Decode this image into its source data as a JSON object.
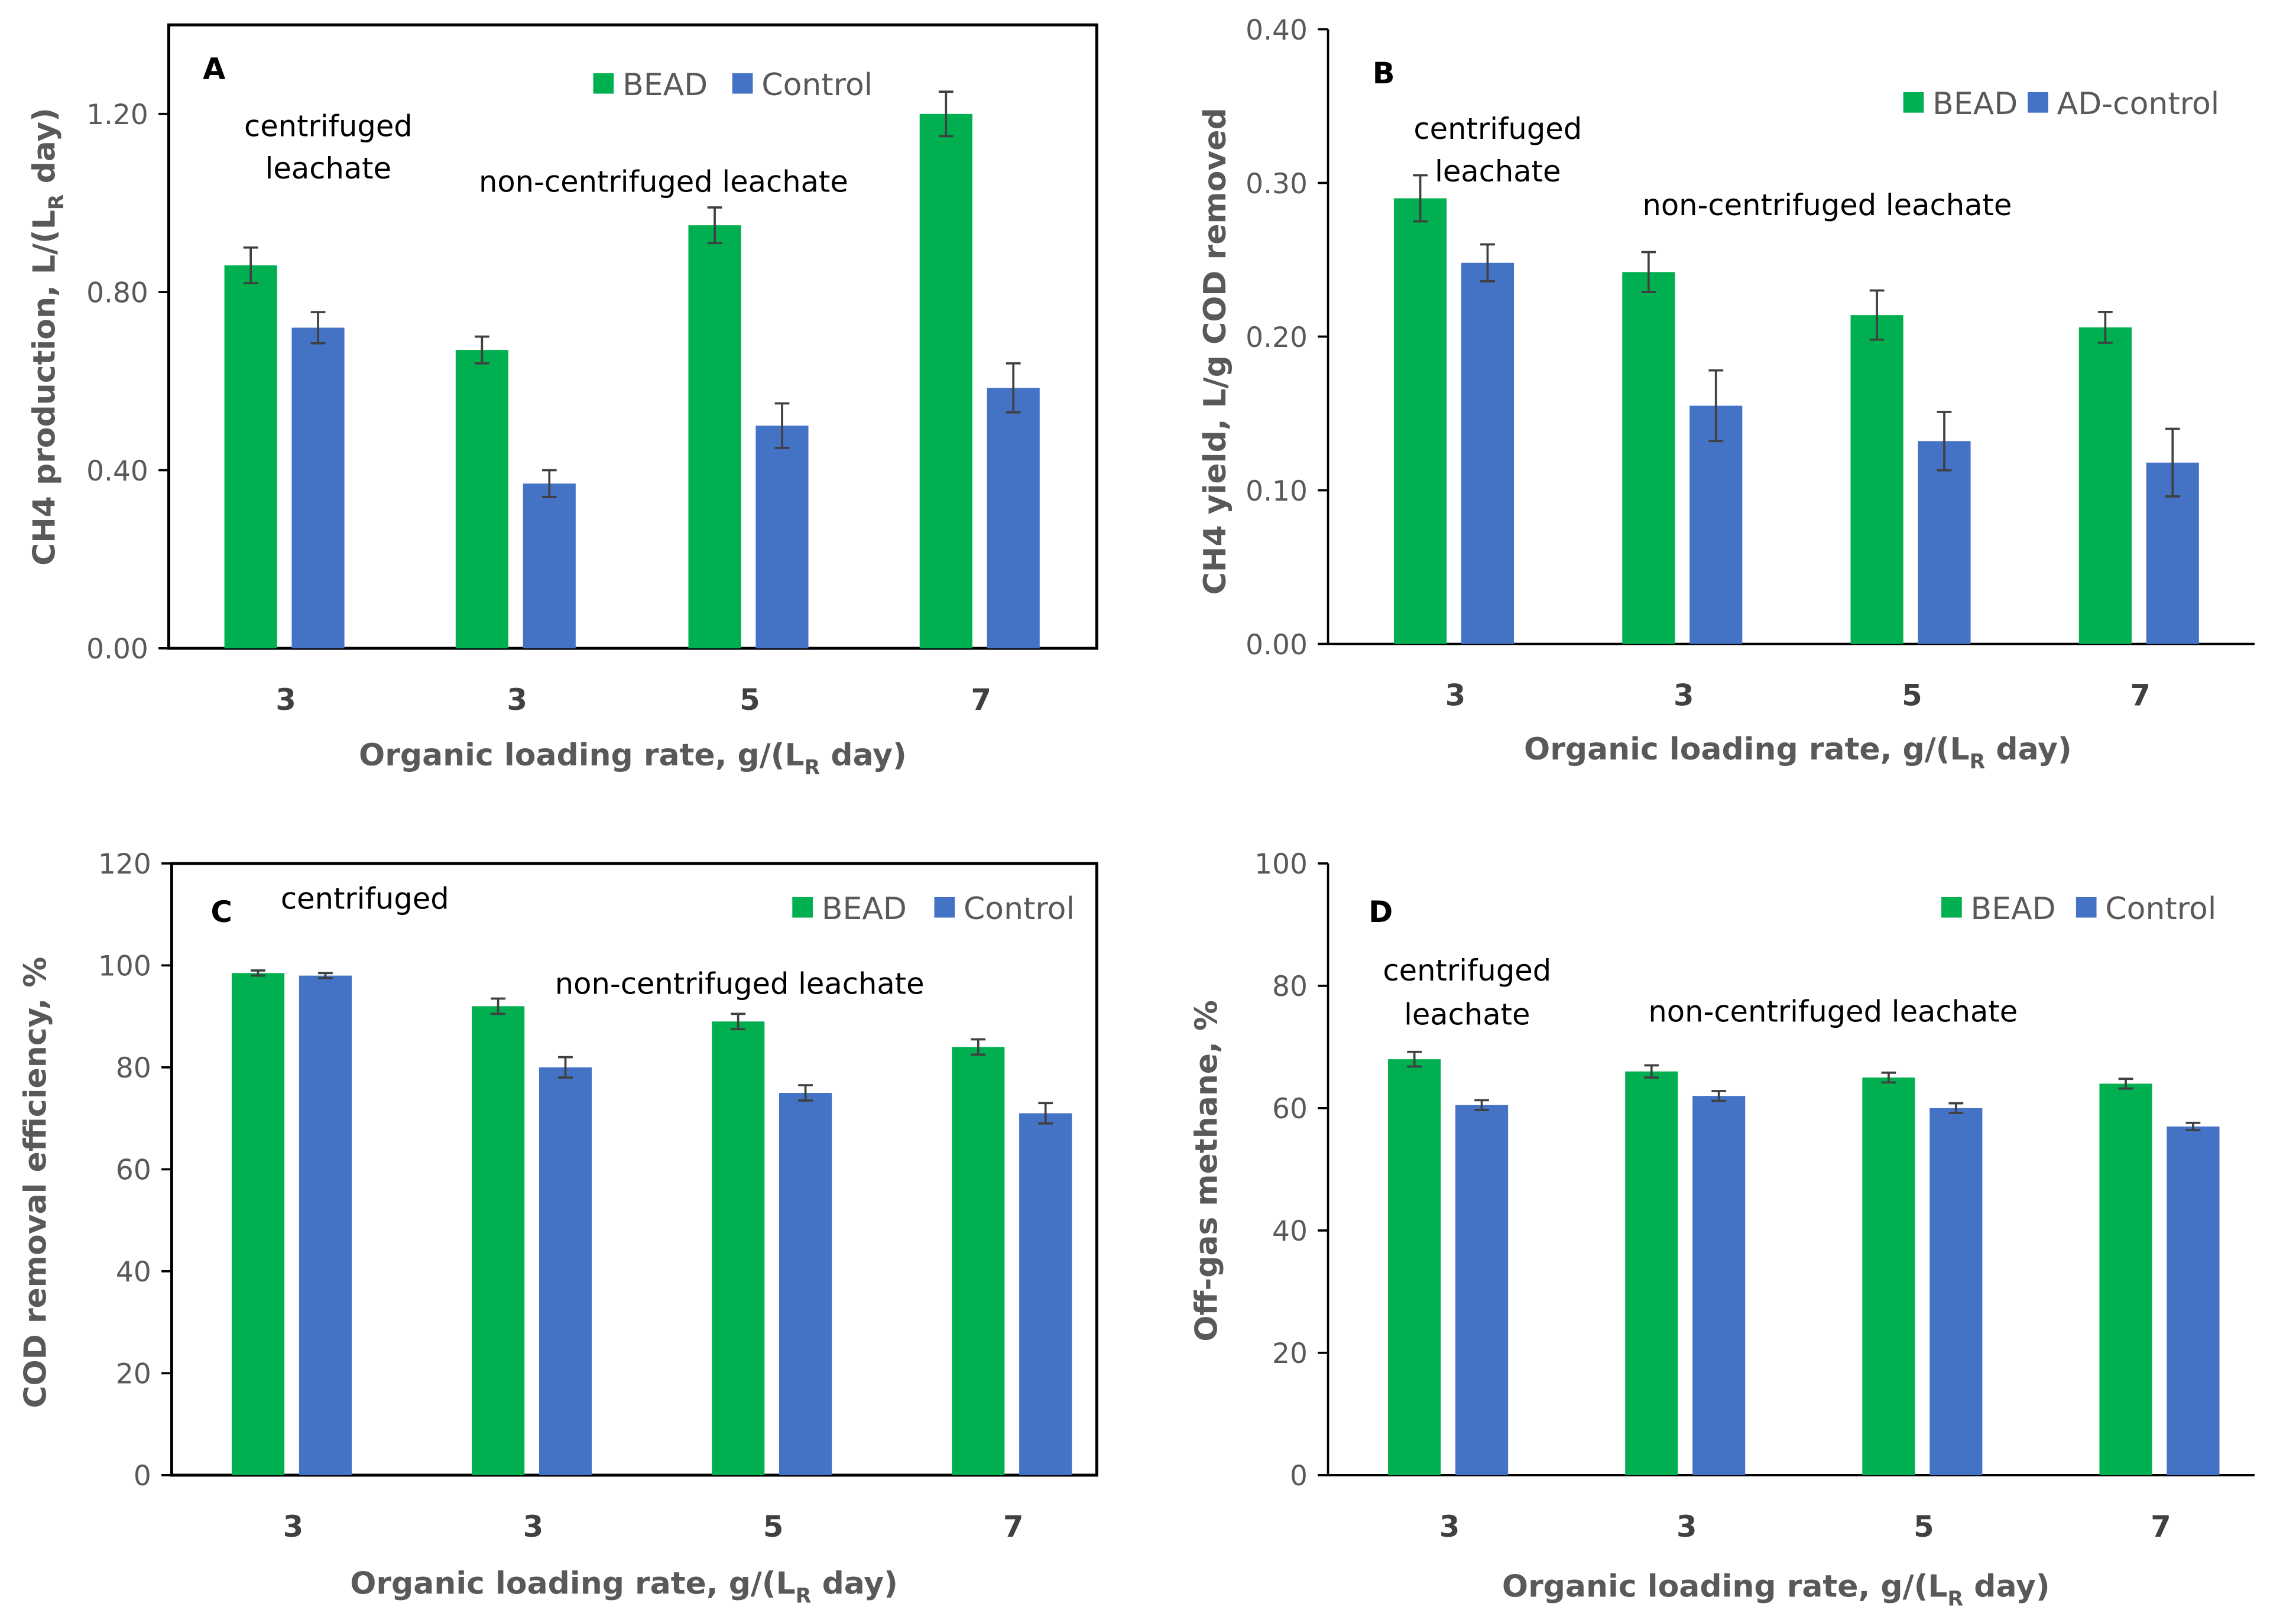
{
  "chart_data": [
    {
      "panel": "A",
      "type": "bar",
      "categories": [
        "3",
        "3",
        "5",
        "7"
      ],
      "xlabel": [
        "Organic loading rate, g/(L",
        "R",
        " day)"
      ],
      "ylabel": [
        "CH4 production, L/(L",
        "R",
        " day)"
      ],
      "ylim": [
        0,
        1.4
      ],
      "yticks": [
        "0.00",
        "0.40",
        "0.80",
        "1.20"
      ],
      "ytick_values": [
        0,
        0.4,
        0.8,
        1.2
      ],
      "series": [
        {
          "name": "BEAD",
          "color": "#00B050",
          "values": [
            0.86,
            0.67,
            0.95,
            1.2
          ],
          "errors": [
            0.04,
            0.03,
            0.04,
            0.05
          ]
        },
        {
          "name": "Control",
          "color": "#4472C4",
          "values": [
            0.72,
            0.37,
            0.5,
            0.585
          ],
          "errors": [
            0.035,
            0.03,
            0.05,
            0.055
          ]
        }
      ],
      "annotations": [
        "centrifuged",
        "leachate",
        "non-centrifuged leachate"
      ]
    },
    {
      "panel": "B",
      "type": "bar",
      "categories": [
        "3",
        "3",
        "5",
        "7"
      ],
      "xlabel": [
        "Organic loading rate, g/(L",
        "R",
        " day)"
      ],
      "ylabel": [
        "CH4 yield, L/g COD removed",
        "",
        ""
      ],
      "ylim": [
        0,
        0.4
      ],
      "yticks": [
        "0.00",
        "0.10",
        "0.20",
        "0.30",
        "0.40"
      ],
      "ytick_values": [
        0,
        0.1,
        0.2,
        0.3,
        0.4
      ],
      "series": [
        {
          "name": "BEAD",
          "color": "#00B050",
          "values": [
            0.29,
            0.242,
            0.214,
            0.206
          ],
          "errors": [
            0.015,
            0.013,
            0.016,
            0.01
          ]
        },
        {
          "name": "AD-control",
          "color": "#4472C4",
          "values": [
            0.248,
            0.155,
            0.132,
            0.118
          ],
          "errors": [
            0.012,
            0.023,
            0.019,
            0.022
          ]
        }
      ],
      "annotations": [
        "centrifuged",
        "leachate",
        "non-centrifuged leachate"
      ]
    },
    {
      "panel": "C",
      "type": "bar",
      "categories": [
        "3",
        "3",
        "5",
        "7"
      ],
      "xlabel": [
        "Organic loading rate, g/(L",
        "R",
        " day)"
      ],
      "ylabel": [
        "COD removal efficiency, %",
        "",
        ""
      ],
      "ylim": [
        0,
        120
      ],
      "yticks": [
        "0",
        "20",
        "40",
        "60",
        "80",
        "100",
        "120"
      ],
      "ytick_values": [
        0,
        20,
        40,
        60,
        80,
        100,
        120
      ],
      "series": [
        {
          "name": "BEAD",
          "color": "#00B050",
          "values": [
            98.5,
            92,
            89,
            84
          ],
          "errors": [
            0.5,
            1.5,
            1.5,
            1.5
          ]
        },
        {
          "name": "Control",
          "color": "#4472C4",
          "values": [
            98,
            80,
            75,
            71
          ],
          "errors": [
            0.5,
            2,
            1.5,
            2
          ]
        }
      ],
      "annotations": [
        "centrifuged",
        "",
        "non-centrifuged leachate"
      ]
    },
    {
      "panel": "D",
      "type": "bar",
      "categories": [
        "3",
        "3",
        "5",
        "7"
      ],
      "xlabel": [
        "Organic loading rate, g/(L",
        "R",
        " day)"
      ],
      "ylabel": [
        "Off-gas methane, %",
        "",
        ""
      ],
      "ylim": [
        0,
        100
      ],
      "yticks": [
        "0",
        "20",
        "40",
        "60",
        "80",
        "100"
      ],
      "ytick_values": [
        0,
        20,
        40,
        60,
        80,
        100
      ],
      "series": [
        {
          "name": "BEAD",
          "color": "#00B050",
          "values": [
            68,
            66,
            65,
            64
          ],
          "errors": [
            1.2,
            1,
            0.8,
            0.8
          ]
        },
        {
          "name": "Control",
          "color": "#4472C4",
          "values": [
            60.5,
            62,
            60,
            57
          ],
          "errors": [
            0.8,
            0.8,
            0.8,
            0.6
          ]
        }
      ],
      "annotations": [
        "centrifuged",
        "leachate",
        "non-centrifuged leachate"
      ]
    }
  ]
}
